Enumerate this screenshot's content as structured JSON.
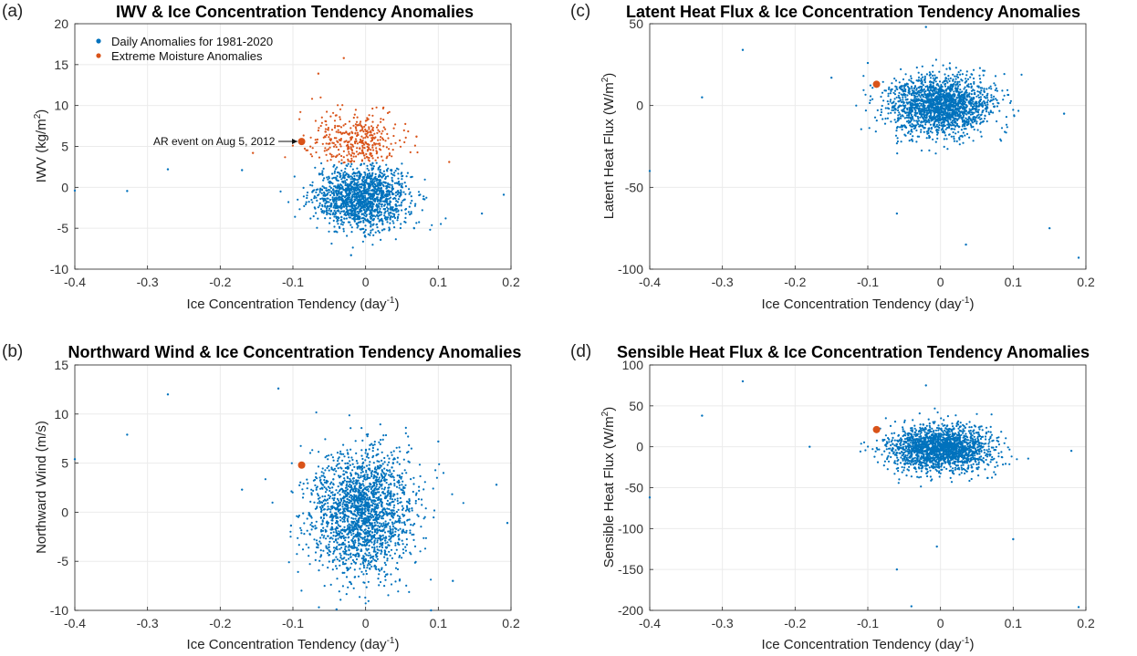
{
  "colors": {
    "daily": "#0072BD",
    "extreme": "#D95319",
    "event": "#D95319",
    "grid": "#ebebeb",
    "axis": "#262626"
  },
  "chart_data": [
    {
      "panel": "(a)",
      "type": "scatter",
      "title": "IWV & Ice Concentration Tendency Anomalies",
      "xlabel": "Ice Concentration Tendency (day",
      "xlabel_sup": "-1",
      "xlabel_end": ")",
      "ylabel": "IWV (kg/m",
      "ylabel_sup": "2",
      "ylabel_end": ")",
      "xlim": [
        -0.4,
        0.2
      ],
      "ylim": [
        -10,
        20
      ],
      "xticks": [
        -0.4,
        -0.3,
        -0.2,
        -0.1,
        0,
        0.1,
        0.2
      ],
      "xtick_labels": [
        "-0.4",
        "-0.3",
        "-0.2",
        "-0.1",
        "0",
        "0.1",
        "0.2"
      ],
      "yticks": [
        -10,
        -5,
        0,
        5,
        10,
        15,
        20
      ],
      "ytick_labels": [
        "-10",
        "-5",
        "0",
        "5",
        "10",
        "15",
        "20"
      ],
      "legend": [
        "Daily Anomalies for 1981-2020",
        "Extreme Moisture Anomalies"
      ],
      "legend_position": "top-left",
      "series": [
        {
          "name": "Daily Anomalies for 1981-2020",
          "color": "daily",
          "cloud": {
            "cx": -0.005,
            "cy": -1.2,
            "sx": 0.032,
            "sy": 1.9,
            "n": 1500
          }
        },
        {
          "name": "Extreme Moisture Anomalies",
          "color": "extreme",
          "cloud": {
            "cx": -0.012,
            "cy": 5.0,
            "sx": 0.03,
            "sy": 2.2,
            "n": 380,
            "ymin": 3
          }
        }
      ],
      "outliers": [
        [
          -0.4,
          -0.4
        ],
        [
          -0.328,
          -0.45
        ],
        [
          -0.272,
          2.2
        ],
        [
          -0.17,
          2.1
        ],
        [
          -0.155,
          4.2
        ],
        [
          -0.02,
          -8.3
        ],
        [
          0.115,
          3.1
        ],
        [
          0.19,
          -0.9
        ],
        [
          0.07,
          6.2
        ],
        [
          0.16,
          -3.2
        ],
        [
          -0.065,
          13.9
        ],
        [
          -0.03,
          15.8
        ]
      ],
      "event": {
        "x": -0.088,
        "y": 5.6
      },
      "annotation": "AR event on Aug 5, 2012"
    },
    {
      "panel": "(b)",
      "type": "scatter",
      "title": "Northward Wind & Ice Concentration Tendency Anomalies",
      "xlabel": "Ice Concentration Tendency (day",
      "xlabel_sup": "-1",
      "xlabel_end": ")",
      "ylabel": "Northward Wind (m/s)",
      "ylabel_sup": "",
      "ylabel_end": "",
      "xlim": [
        -0.4,
        0.2
      ],
      "ylim": [
        -10,
        15
      ],
      "xticks": [
        -0.4,
        -0.3,
        -0.2,
        -0.1,
        0,
        0.1,
        0.2
      ],
      "xtick_labels": [
        "-0.4",
        "-0.3",
        "-0.2",
        "-0.1",
        "0",
        "0.1",
        "0.2"
      ],
      "yticks": [
        -10,
        -5,
        0,
        5,
        10,
        15
      ],
      "ytick_labels": [
        "-10",
        "-5",
        "0",
        "5",
        "10",
        "15"
      ],
      "series": [
        {
          "name": "Daily Anomalies for 1981-2020",
          "color": "daily",
          "cloud": {
            "cx": -0.005,
            "cy": 0.0,
            "sx": 0.035,
            "sy": 3.2,
            "n": 2000
          }
        }
      ],
      "outliers": [
        [
          -0.4,
          5.4
        ],
        [
          -0.328,
          7.9
        ],
        [
          -0.272,
          12.0
        ],
        [
          -0.12,
          12.6
        ],
        [
          -0.17,
          2.3
        ],
        [
          0.18,
          2.8
        ],
        [
          0.195,
          -1.1
        ],
        [
          0.1,
          7.2
        ],
        [
          0.12,
          -7.0
        ],
        [
          -0.04,
          -9.9
        ],
        [
          0.09,
          -10.0
        ]
      ],
      "event": {
        "x": -0.088,
        "y": 4.8
      }
    },
    {
      "panel": "(c)",
      "type": "scatter",
      "title": "Latent Heat Flux & Ice Concentration Tendency Anomalies",
      "xlabel": "Ice Concentration Tendency (day",
      "xlabel_sup": "-1",
      "xlabel_end": ")",
      "ylabel": "Latent Heat Flux (W/m",
      "ylabel_sup": "2",
      "ylabel_end": ")",
      "xlim": [
        -0.4,
        0.2
      ],
      "ylim": [
        -100,
        50
      ],
      "xticks": [
        -0.4,
        -0.3,
        -0.2,
        -0.1,
        0,
        0.1,
        0.2
      ],
      "xtick_labels": [
        "-0.4",
        "-0.3",
        "-0.2",
        "-0.1",
        "0",
        "0.1",
        "0.2"
      ],
      "yticks": [
        -100,
        -50,
        0,
        50
      ],
      "ytick_labels": [
        "-100",
        "-50",
        "0",
        "50"
      ],
      "series": [
        {
          "name": "Daily Anomalies for 1981-2020",
          "color": "daily",
          "cloud": {
            "cx": 0.0,
            "cy": 0.0,
            "sx": 0.035,
            "sy": 9,
            "n": 1900
          }
        }
      ],
      "outliers": [
        [
          -0.4,
          -40
        ],
        [
          -0.328,
          5
        ],
        [
          -0.272,
          34
        ],
        [
          -0.02,
          48
        ],
        [
          -0.06,
          -66
        ],
        [
          0.035,
          -85
        ],
        [
          0.15,
          -75
        ],
        [
          0.19,
          -93
        ],
        [
          -0.15,
          17
        ],
        [
          0.17,
          -5
        ],
        [
          -0.1,
          26
        ]
      ],
      "event": {
        "x": -0.088,
        "y": 13
      }
    },
    {
      "panel": "(d)",
      "type": "scatter",
      "title": "Sensible Heat Flux & Ice Concentration Tendency Anomalies",
      "xlabel": "Ice Concentration Tendency (day",
      "xlabel_sup": "-1",
      "xlabel_end": ")",
      "ylabel": "Sensible Heat Flux (W/m",
      "ylabel_sup": "2",
      "ylabel_end": ")",
      "xlim": [
        -0.4,
        0.2
      ],
      "ylim": [
        -200,
        100
      ],
      "xticks": [
        -0.4,
        -0.3,
        -0.2,
        -0.1,
        0,
        0.1,
        0.2
      ],
      "xtick_labels": [
        "-0.4",
        "-0.3",
        "-0.2",
        "-0.1",
        "0",
        "0.1",
        "0.2"
      ],
      "yticks": [
        -200,
        -150,
        -100,
        -50,
        0,
        50,
        100
      ],
      "ytick_labels": [
        "-200",
        "-150",
        "-100",
        "-50",
        "0",
        "50",
        "100"
      ],
      "series": [
        {
          "name": "Daily Anomalies for 1981-2020",
          "color": "daily",
          "cloud": {
            "cx": 0.0,
            "cy": -2.0,
            "sx": 0.035,
            "sy": 14,
            "n": 1900
          }
        }
      ],
      "outliers": [
        [
          -0.4,
          -62
        ],
        [
          -0.328,
          38
        ],
        [
          -0.272,
          80
        ],
        [
          -0.06,
          -150
        ],
        [
          -0.04,
          -195
        ],
        [
          0.19,
          -196
        ],
        [
          -0.005,
          -122
        ],
        [
          0.1,
          -113
        ],
        [
          -0.02,
          75
        ],
        [
          0.18,
          -5
        ],
        [
          -0.18,
          0
        ]
      ],
      "event": {
        "x": -0.088,
        "y": 21
      }
    }
  ]
}
